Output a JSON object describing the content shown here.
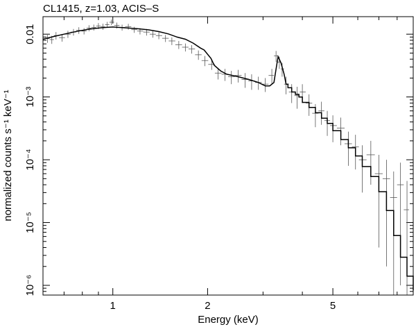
{
  "chart_data": {
    "type": "scatter",
    "title": "CL1415, z=1.03, ACIS–S",
    "xlabel": "Energy (keV)",
    "ylabel": "normalized counts s⁻¹ keV⁻¹",
    "xscale": "log",
    "yscale": "log",
    "xlim": [
      0.6,
      9.0
    ],
    "ylim": [
      7e-07,
      0.019
    ],
    "x_ticks": [
      1,
      2,
      5
    ],
    "x_tick_labels": [
      "1",
      "2",
      "5"
    ],
    "y_ticks": [
      1e-06,
      1e-05,
      0.0001,
      0.001,
      0.01
    ],
    "y_tick_labels": [
      "10⁻⁶",
      "10⁻⁵",
      "10⁻⁴",
      "10⁻³",
      "0.01"
    ],
    "grid": false,
    "legend": "none",
    "colors": {
      "model": "#000000",
      "data": "#555555"
    },
    "series": [
      {
        "kind": "data",
        "x": [
          0.62,
          0.64,
          0.66,
          0.69,
          0.72,
          0.75,
          0.78,
          0.81,
          0.84,
          0.87,
          0.9,
          0.93,
          0.96,
          0.99,
          1.03,
          1.07,
          1.12,
          1.17,
          1.22,
          1.28,
          1.34,
          1.4,
          1.47,
          1.54,
          1.62,
          1.7,
          1.78,
          1.87,
          1.96,
          2.06,
          2.16,
          2.27,
          2.38,
          2.5,
          2.63,
          2.76,
          2.9,
          3.05,
          3.2,
          3.3,
          3.38,
          3.45,
          3.55,
          3.7,
          3.85,
          4.0,
          4.2,
          4.4,
          4.6,
          4.8,
          5.0,
          5.3,
          5.6,
          5.9,
          6.2,
          6.6,
          7.0,
          7.4,
          7.8,
          8.2,
          8.6
        ],
        "y": [
          0.0085,
          0.0082,
          0.0095,
          0.0088,
          0.01,
          0.0108,
          0.0115,
          0.0112,
          0.0125,
          0.0128,
          0.0135,
          0.0132,
          0.0142,
          0.0155,
          0.0138,
          0.0128,
          0.0132,
          0.0118,
          0.0112,
          0.0108,
          0.01,
          0.0095,
          0.0086,
          0.0078,
          0.0068,
          0.0062,
          0.0058,
          0.0047,
          0.0038,
          0.0033,
          0.0024,
          0.0023,
          0.0021,
          0.0022,
          0.0019,
          0.0018,
          0.0017,
          0.0016,
          0.0022,
          0.0045,
          0.0036,
          0.0028,
          0.0016,
          0.0012,
          0.00105,
          0.0012,
          0.0008,
          0.00055,
          0.0006,
          0.00042,
          0.00035,
          0.00032,
          0.00018,
          0.00016,
          0.0001,
          0.00012,
          6e-05,
          5e-05,
          2.5e-05,
          4e-05,
          1.6e-05
        ],
        "yerr_low": [
          0.0012,
          0.0012,
          0.0013,
          0.0012,
          0.0013,
          0.0013,
          0.0014,
          0.0013,
          0.0014,
          0.0014,
          0.0015,
          0.0015,
          0.0015,
          0.0016,
          0.0015,
          0.0014,
          0.0014,
          0.0013,
          0.0013,
          0.0013,
          0.0012,
          0.0012,
          0.0011,
          0.0011,
          0.001,
          0.0009,
          0.0009,
          0.0008,
          0.0007,
          0.0006,
          0.0005,
          0.0005,
          0.0005,
          0.0005,
          0.0005,
          0.0005,
          0.0004,
          0.0004,
          0.0006,
          0.0009,
          0.0008,
          0.0007,
          0.0005,
          0.0004,
          0.0004,
          0.0004,
          0.0003,
          0.00022,
          0.00024,
          0.00018,
          0.00016,
          0.00015,
          0.0001,
          9e-05,
          7e-05,
          8e-05,
          5.6e-05,
          4.8e-05,
          2.45e-05,
          3.9e-05,
          1.58e-05
        ],
        "yerr_high": [
          0.0012,
          0.0012,
          0.0013,
          0.0012,
          0.0013,
          0.0013,
          0.0014,
          0.0013,
          0.0014,
          0.0014,
          0.0015,
          0.0015,
          0.0015,
          0.0016,
          0.0015,
          0.0014,
          0.0014,
          0.0013,
          0.0013,
          0.0013,
          0.0012,
          0.0012,
          0.0011,
          0.0011,
          0.001,
          0.0009,
          0.0009,
          0.0008,
          0.0007,
          0.0006,
          0.0005,
          0.0005,
          0.0005,
          0.0005,
          0.0005,
          0.0005,
          0.0004,
          0.0004,
          0.0006,
          0.0009,
          0.0008,
          0.0007,
          0.0005,
          0.0004,
          0.0004,
          0.0004,
          0.0003,
          0.00022,
          0.00024,
          0.00018,
          0.00016,
          0.00015,
          0.0001,
          9e-05,
          7e-05,
          8e-05,
          6e-05,
          5e-05,
          4e-05,
          5e-05,
          3e-05
        ]
      },
      {
        "kind": "model",
        "x": [
          0.6,
          0.65,
          0.7,
          0.75,
          0.8,
          0.85,
          0.9,
          0.95,
          1.0,
          1.05,
          1.1,
          1.2,
          1.3,
          1.4,
          1.5,
          1.6,
          1.7,
          1.8,
          1.9,
          1.95,
          2.05,
          2.1,
          2.2,
          2.3,
          2.5,
          2.7,
          2.9,
          3.05,
          3.15,
          3.25,
          3.3,
          3.35,
          3.42,
          3.5,
          3.55,
          3.6,
          3.7,
          3.8,
          3.9,
          4.0,
          4.2,
          4.4,
          4.6,
          4.8,
          5.0,
          5.3,
          5.6,
          5.9,
          6.2,
          6.6,
          7.0,
          7.4,
          7.8,
          8.2,
          8.6,
          9.0
        ],
        "y": [
          0.0083,
          0.0092,
          0.01,
          0.0108,
          0.0115,
          0.0121,
          0.0125,
          0.0128,
          0.013,
          0.0128,
          0.0126,
          0.0122,
          0.0117,
          0.011,
          0.0101,
          0.009,
          0.0083,
          0.0072,
          0.006,
          0.0056,
          0.0041,
          0.0032,
          0.0026,
          0.0023,
          0.0021,
          0.0019,
          0.0017,
          0.0015,
          0.0015,
          0.0017,
          0.0028,
          0.0044,
          0.0035,
          0.0023,
          0.0016,
          0.0014,
          0.0012,
          0.0011,
          0.001,
          0.00082,
          0.00068,
          0.00056,
          0.00046,
          0.00038,
          0.00029,
          0.00021,
          0.000155,
          0.000115,
          7.8e-05,
          5.4e-05,
          3.1e-05,
          1.55e-05,
          6.2e-06,
          2.8e-06,
          1.4e-06,
          8.3e-07
        ]
      }
    ]
  }
}
